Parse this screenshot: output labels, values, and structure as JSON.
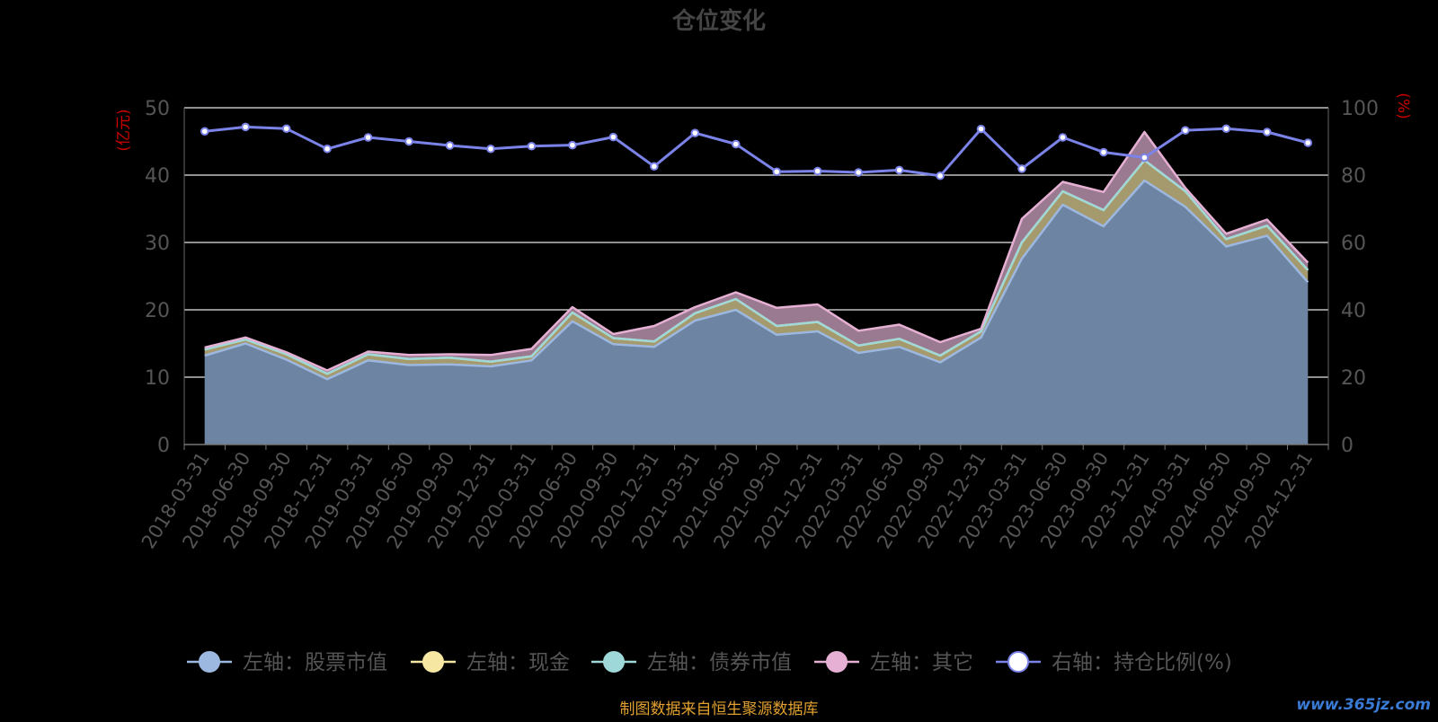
{
  "chart_data": {
    "type": "area",
    "title": "仓位变化",
    "left_axis_unit": "(亿元)",
    "right_axis_unit": "(%)",
    "ylim_left": [
      0,
      50
    ],
    "ylim_right": [
      0,
      100
    ],
    "left_ticks": [
      "0",
      "10",
      "20",
      "30",
      "40",
      "50"
    ],
    "right_ticks": [
      "0",
      "20",
      "40",
      "60",
      "80",
      "100"
    ],
    "grid": true,
    "legend_position": "bottom",
    "categories": [
      "2018-03-31",
      "2018-06-30",
      "2018-09-30",
      "2018-12-31",
      "2019-03-31",
      "2019-06-30",
      "2019-09-30",
      "2019-12-31",
      "2020-03-31",
      "2020-06-30",
      "2020-09-30",
      "2020-12-31",
      "2021-03-31",
      "2021-06-30",
      "2021-09-30",
      "2021-12-31",
      "2022-03-31",
      "2022-06-30",
      "2022-09-30",
      "2022-12-31",
      "2023-03-31",
      "2023-06-30",
      "2023-09-30",
      "2023-12-31",
      "2024-03-31",
      "2024-06-30",
      "2024-09-30",
      "2024-12-31"
    ],
    "series": [
      {
        "name": "左轴：股票市值",
        "axis": "left",
        "stack": true,
        "color": "#9db8e0",
        "fill": "#6d84a2",
        "values": [
          13.2,
          15.0,
          12.6,
          9.7,
          12.5,
          11.8,
          11.9,
          11.6,
          12.5,
          18.3,
          14.9,
          14.5,
          18.4,
          20.0,
          16.3,
          16.8,
          13.6,
          14.5,
          12.2,
          15.9,
          27.6,
          35.6,
          32.4,
          39.2,
          35.3,
          29.4,
          31.0,
          24.1
        ]
      },
      {
        "name": "左轴：现金",
        "axis": "left",
        "stack": true,
        "color": "#f6e7a2",
        "fill": "#a49a6e",
        "values": [
          0.9,
          0.6,
          0.8,
          0.8,
          0.9,
          0.9,
          1.0,
          0.7,
          0.6,
          1.3,
          0.9,
          0.8,
          1.1,
          1.6,
          1.3,
          1.4,
          1.1,
          1.2,
          1.0,
          0.9,
          2.4,
          2.0,
          2.4,
          3.0,
          2.3,
          1.1,
          1.5,
          1.8
        ]
      },
      {
        "name": "左轴：债券市值",
        "axis": "left",
        "stack": true,
        "color": "#9ed8d8",
        "fill": "#6f9e9e",
        "values": [
          0,
          0,
          0,
          0,
          0,
          0,
          0,
          0,
          0,
          0,
          0,
          0,
          0,
          0,
          0,
          0,
          0,
          0,
          0,
          0,
          0,
          0,
          0,
          0,
          0,
          0,
          0,
          0
        ]
      },
      {
        "name": "左轴：其它",
        "axis": "left",
        "stack": true,
        "color": "#e6b0d4",
        "fill": "#9a7a90",
        "values": [
          0.3,
          0.3,
          0.3,
          0.5,
          0.4,
          0.6,
          0.5,
          1.0,
          1.1,
          0.8,
          0.6,
          2.3,
          0.9,
          1.0,
          2.7,
          2.6,
          2.2,
          2.1,
          2.0,
          0.4,
          3.5,
          1.4,
          2.7,
          4.2,
          0.5,
          0.8,
          0.9,
          1.1
        ]
      },
      {
        "name": "右轴：持仓比例(%)",
        "axis": "right",
        "stack": false,
        "color": "#7b83e8",
        "values": [
          93.0,
          94.3,
          93.8,
          87.8,
          91.2,
          90.0,
          88.8,
          87.8,
          88.6,
          88.9,
          91.3,
          82.6,
          92.5,
          89.2,
          81.0,
          81.2,
          80.8,
          81.5,
          79.8,
          93.7,
          81.9,
          91.2,
          86.8,
          85.2,
          93.3,
          93.8,
          92.8,
          89.6
        ]
      }
    ]
  },
  "footer": {
    "source_text": "制图数据来自恒生聚源数据库",
    "watermark": "www.365jz.com"
  },
  "colors": {
    "title": "#444444",
    "axis_text": "#555555",
    "unit_text": "#cc0000",
    "grid": "#e8e8e8",
    "source_text": "#e0a030",
    "watermark": "#3a7bd5"
  }
}
